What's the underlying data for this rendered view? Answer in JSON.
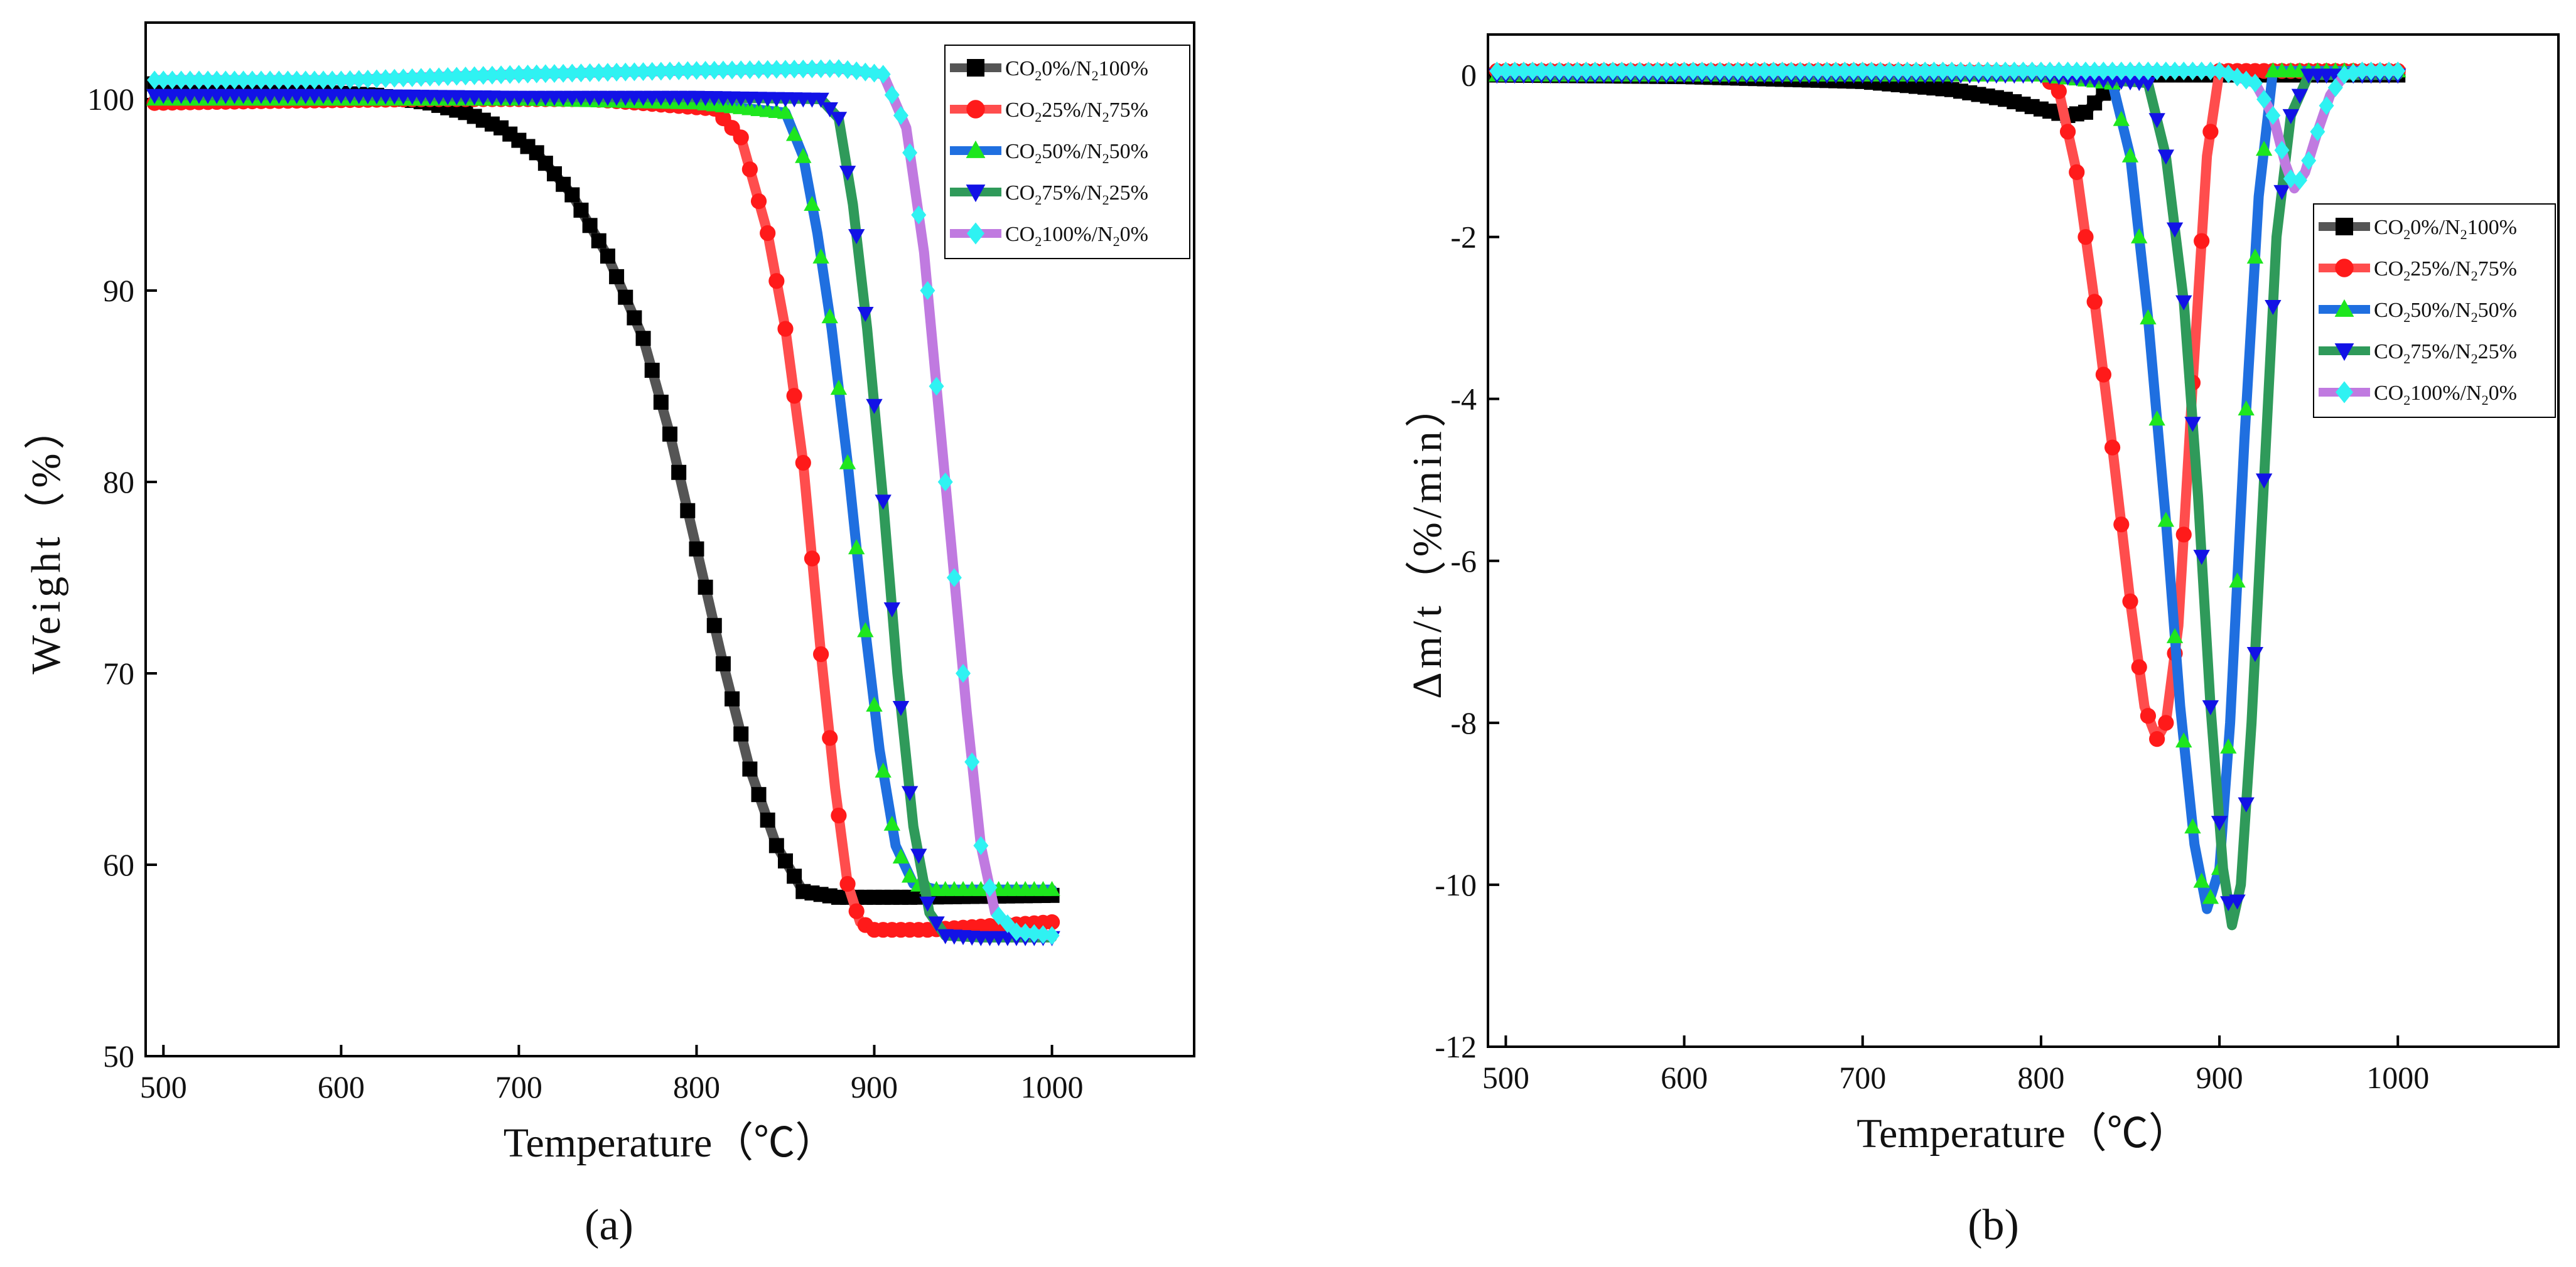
{
  "legend_entries": [
    {
      "parts": [
        "CO",
        "2",
        "0%/N",
        "2",
        "100%"
      ],
      "color": "#000000",
      "line": "#555555",
      "marker": "square"
    },
    {
      "parts": [
        "CO",
        "2",
        "25%/N",
        "2",
        "75%"
      ],
      "color": "#ff1a1a",
      "line": "#ff4d4d",
      "marker": "circle"
    },
    {
      "parts": [
        "CO",
        "2",
        "50%/N",
        "2",
        "50%"
      ],
      "color": "#1ee61e",
      "line": "#1f6fe0",
      "marker": "triangle-up"
    },
    {
      "parts": [
        "CO",
        "2",
        "75%/N",
        "2",
        "25%"
      ],
      "color": "#1212e6",
      "line": "#2f9a5a",
      "marker": "triangle-down"
    },
    {
      "parts": [
        "CO",
        "2",
        "100%/N",
        "2",
        "0%"
      ],
      "color": "#2ff2f2",
      "line": "#c07ae0",
      "marker": "diamond"
    }
  ],
  "chart_data": [
    {
      "type": "line",
      "panel_label": "(a)",
      "title": "",
      "xlabel": "Temperature（℃）",
      "ylabel": "Weight（%）",
      "xlim": [
        490,
        1080
      ],
      "ylim": [
        50,
        104
      ],
      "xticks": [
        500,
        600,
        700,
        800,
        900,
        1000
      ],
      "yticks": [
        50,
        60,
        70,
        80,
        90,
        100
      ],
      "legend_position": "top-right",
      "series": [
        {
          "name": "CO2 0%/N2 100%",
          "x": [
            495,
            560,
            620,
            650,
            670,
            690,
            710,
            730,
            750,
            770,
            785,
            800,
            815,
            830,
            845,
            860,
            880,
            920,
            1000
          ],
          "y": [
            100.8,
            100.5,
            100.2,
            99.8,
            99.3,
            98.5,
            97.2,
            95,
            91.8,
            87.5,
            82.5,
            76.5,
            70.5,
            65,
            61,
            58.6,
            58.3,
            58.3,
            58.4
          ]
        },
        {
          "name": "CO2 25%/N2 75%",
          "x": [
            495,
            560,
            650,
            740,
            810,
            825,
            840,
            850,
            860,
            870,
            878,
            885,
            892,
            900,
            930,
            1000
          ],
          "y": [
            99.8,
            99.9,
            100,
            100,
            99.5,
            98,
            93,
            88,
            81,
            71,
            64,
            59,
            57,
            56.6,
            56.6,
            57
          ]
        },
        {
          "name": "CO2 50%/N2 50%",
          "x": [
            495,
            600,
            700,
            800,
            850,
            860,
            868,
            876,
            885,
            894,
            903,
            912,
            922,
            935,
            1000
          ],
          "y": [
            100,
            100,
            100,
            99.8,
            99.3,
            97,
            93,
            88,
            81,
            73,
            66,
            61,
            59,
            58.7,
            58.7
          ]
        },
        {
          "name": "CO2 75%/N2 25%",
          "x": [
            495,
            600,
            700,
            800,
            870,
            880,
            888,
            896,
            905,
            913,
            922,
            931,
            940,
            960,
            1000
          ],
          "y": [
            100.2,
            100.2,
            100.1,
            100.1,
            100,
            99,
            94.5,
            88,
            79,
            70,
            62,
            57.5,
            56.3,
            56.2,
            56.2
          ]
        },
        {
          "name": "CO2 100%/N2 0%",
          "x": [
            495,
            600,
            700,
            800,
            880,
            905,
            918,
            928,
            936,
            944,
            952,
            960,
            968,
            980,
            1000
          ],
          "y": [
            101,
            101,
            101.3,
            101.5,
            101.6,
            101.3,
            98.5,
            92,
            84,
            76,
            68,
            61,
            57.5,
            56.5,
            56.3
          ]
        }
      ]
    },
    {
      "type": "line",
      "panel_label": "(b)",
      "title": "",
      "xlabel": "Temperature（℃）",
      "ylabel": "Δm/t（%/min）",
      "xlim": [
        490,
        1090
      ],
      "ylim": [
        -12,
        0.5
      ],
      "xticks": [
        500,
        600,
        700,
        800,
        900,
        1000
      ],
      "yticks": [
        0,
        -2,
        -4,
        -6,
        -8,
        -10,
        -12
      ],
      "legend_position": "upper-right",
      "series": [
        {
          "name": "CO2 0%/N2 100%",
          "x": [
            495,
            600,
            700,
            750,
            780,
            800,
            815,
            825,
            832,
            840,
            848,
            860,
            900,
            1000
          ],
          "y": [
            0,
            -0.02,
            -0.08,
            -0.18,
            -0.3,
            -0.42,
            -0.5,
            -0.46,
            -0.3,
            -0.1,
            0,
            0,
            0,
            0
          ]
        },
        {
          "name": "CO2 25%/N2 75%",
          "x": [
            495,
            700,
            800,
            810,
            820,
            830,
            840,
            850,
            858,
            865,
            870,
            877,
            885,
            893,
            900,
            1000
          ],
          "y": [
            0.05,
            0.05,
            0.03,
            -0.2,
            -1.2,
            -2.8,
            -4.6,
            -6.5,
            -7.8,
            -8.2,
            -8,
            -6.8,
            -3.8,
            -1,
            0.05,
            0.05
          ]
        },
        {
          "name": "CO2 50%/N2 50%",
          "x": [
            495,
            700,
            800,
            840,
            850,
            860,
            870,
            878,
            886,
            893,
            900,
            906,
            914,
            922,
            930,
            1000
          ],
          "y": [
            0,
            0,
            0,
            -0.1,
            -1,
            -3,
            -5.5,
            -7.8,
            -9.5,
            -10.3,
            -9.8,
            -8,
            -4.5,
            -1.5,
            0.05,
            0.05
          ]
        },
        {
          "name": "CO2 75%/N2 25%",
          "x": [
            495,
            700,
            800,
            860,
            870,
            880,
            888,
            895,
            902,
            907,
            912,
            918,
            925,
            932,
            940,
            950,
            1000
          ],
          "y": [
            0,
            0,
            0,
            -0.1,
            -1,
            -2.8,
            -5.2,
            -7.8,
            -9.8,
            -10.5,
            -10,
            -8,
            -5,
            -2,
            -0.5,
            0,
            0
          ]
        },
        {
          "name": "CO2 100%/N2 0%",
          "x": [
            495,
            800,
            900,
            920,
            930,
            937,
            942,
            948,
            955,
            962,
            970,
            980,
            1000
          ],
          "y": [
            0.05,
            0.05,
            0.05,
            -0.1,
            -0.5,
            -1.1,
            -1.4,
            -1.2,
            -0.7,
            -0.25,
            0,
            0.05,
            0.05
          ]
        }
      ]
    }
  ]
}
